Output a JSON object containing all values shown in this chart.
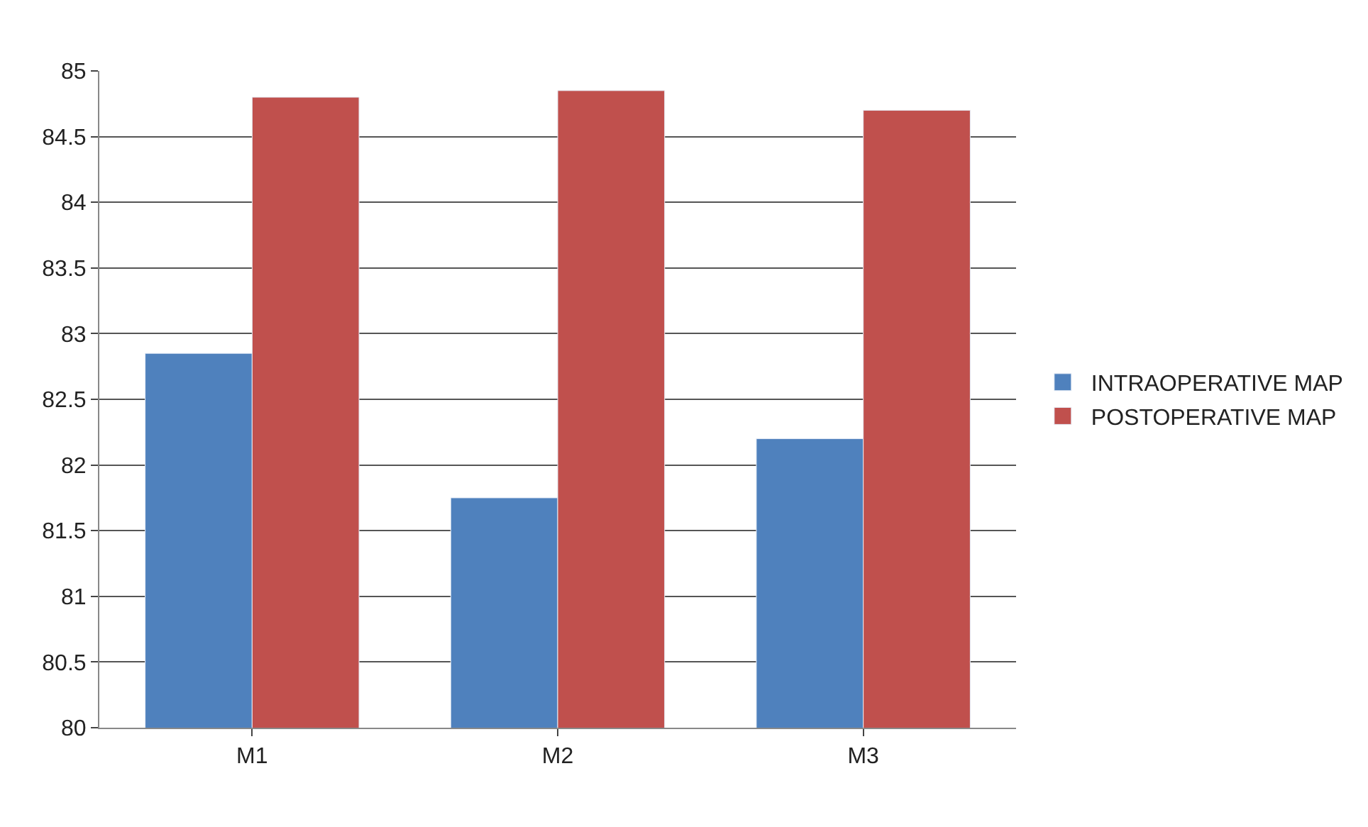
{
  "chart_data": {
    "type": "bar",
    "categories": [
      "M1",
      "M2",
      "M3"
    ],
    "series": [
      {
        "name": "INTRAOPERATIVE MAP",
        "color": "#4f81bd",
        "values": [
          82.85,
          81.75,
          82.2
        ]
      },
      {
        "name": "POSTOPERATIVE MAP",
        "color": "#c0504d",
        "values": [
          84.8,
          84.85,
          84.7
        ]
      }
    ],
    "ylim": [
      80,
      85
    ],
    "yticks": [
      80,
      80.5,
      81,
      81.5,
      82,
      82.5,
      83,
      83.5,
      84,
      84.5,
      85
    ],
    "grid": "y",
    "legend": "right"
  }
}
